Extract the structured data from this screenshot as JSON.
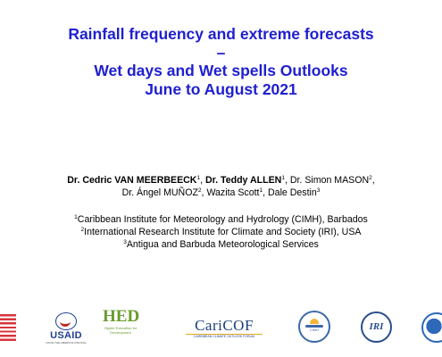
{
  "title": {
    "line1": "Rainfall frequency and extreme forecasts",
    "line2": "–",
    "line3": "Wet days and Wet spells Outlooks",
    "line4": "June to August 2021"
  },
  "authors": {
    "line1": [
      {
        "name": "Dr. Cedric VAN MEERBEECK",
        "aff": "1",
        "bold": true,
        "sep": ", "
      },
      {
        "name": "Dr. Teddy ALLEN",
        "aff": "1",
        "bold": true,
        "sep": ", "
      },
      {
        "name": "Dr. Simon MASON",
        "aff": "2",
        "bold": false,
        "sep": ","
      }
    ],
    "line2": [
      {
        "name": "Dr. Ángel MUÑOZ",
        "aff": "2",
        "bold": false,
        "sep": ", "
      },
      {
        "name": "Wazita Scott",
        "aff": "1",
        "bold": false,
        "sep": ", "
      },
      {
        "name": "Dale Destin",
        "aff": "3",
        "bold": false,
        "sep": ""
      }
    ]
  },
  "affiliations": [
    {
      "num": "1",
      "text": "Caribbean Institute for Meteorology and Hydrology (CIMH), Barbados"
    },
    {
      "num": "2",
      "text": "International Research Institute for Climate and Society (IRI), USA"
    },
    {
      "num": "3",
      "text": "Antigua and Barbuda Meteorological Services"
    }
  ],
  "logos": {
    "usaid": {
      "name": "USAID",
      "tagline": "FROM THE AMERICAN PEOPLE"
    },
    "hed": {
      "name": "HED",
      "tagline": "Higher Education for Development"
    },
    "caricof": {
      "name": "CariCOF",
      "tagline": "CARIBBEAN CLIMATE OUTLOOK FORUM"
    },
    "cimh": {
      "name": "CIMH"
    },
    "iri": {
      "name": "IRI"
    },
    "noaa": {
      "icon": "noaa-logo"
    }
  },
  "colors": {
    "title": "#1f1fd0",
    "text": "#000000",
    "background": "#ffffff"
  }
}
